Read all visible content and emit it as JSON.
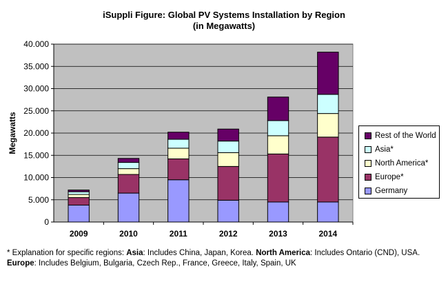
{
  "chart_data": {
    "type": "bar",
    "stacked": true,
    "title": "iSuppli Figure: Global PV Systems Installation by Region",
    "subtitle": "(in Megawatts)",
    "ylabel": "Megawatts",
    "xlabel": "",
    "categories": [
      "2009",
      "2010",
      "2011",
      "2012",
      "2013",
      "2014"
    ],
    "ylim": [
      0,
      40000
    ],
    "yticks": [
      "0",
      "5.000",
      "10.000",
      "15.000",
      "20.000",
      "25.000",
      "30.000",
      "35.000",
      "40.000"
    ],
    "ytick_values": [
      0,
      5000,
      10000,
      15000,
      20000,
      25000,
      30000,
      35000,
      40000
    ],
    "grid": true,
    "legend_position": "right",
    "series": [
      {
        "name": "Germany",
        "color": "#9999ff",
        "values": [
          3800,
          6500,
          9500,
          4900,
          4500,
          4500
        ]
      },
      {
        "name": "Europe*",
        "color": "#993366",
        "values": [
          1700,
          4200,
          4700,
          7600,
          10800,
          14600
        ]
      },
      {
        "name": "North America*",
        "color": "#ffffcc",
        "values": [
          700,
          1300,
          2400,
          3100,
          4100,
          5300
        ]
      },
      {
        "name": "Asia*",
        "color": "#ccffff",
        "values": [
          600,
          1400,
          2000,
          2600,
          3400,
          4300
        ]
      },
      {
        "name": "Rest of the World",
        "color": "#660066",
        "values": [
          400,
          900,
          1600,
          2700,
          5300,
          9500
        ]
      }
    ]
  },
  "footnote": {
    "intro": "* Explanation for specific regions: ",
    "asia_label": "Asia",
    "asia_text": ": Includes China, Japan, Korea. ",
    "na_label": "North America",
    "na_text": ": Includes Ontario (CND), USA. ",
    "europe_label": "Europe",
    "europe_text": ": Includes Belgium, Bulgaria, Czech Rep., France, Greece, Italy, Spain, UK"
  },
  "colors": {
    "plot_background": "#c0c0c0",
    "gridline": "#000000"
  }
}
